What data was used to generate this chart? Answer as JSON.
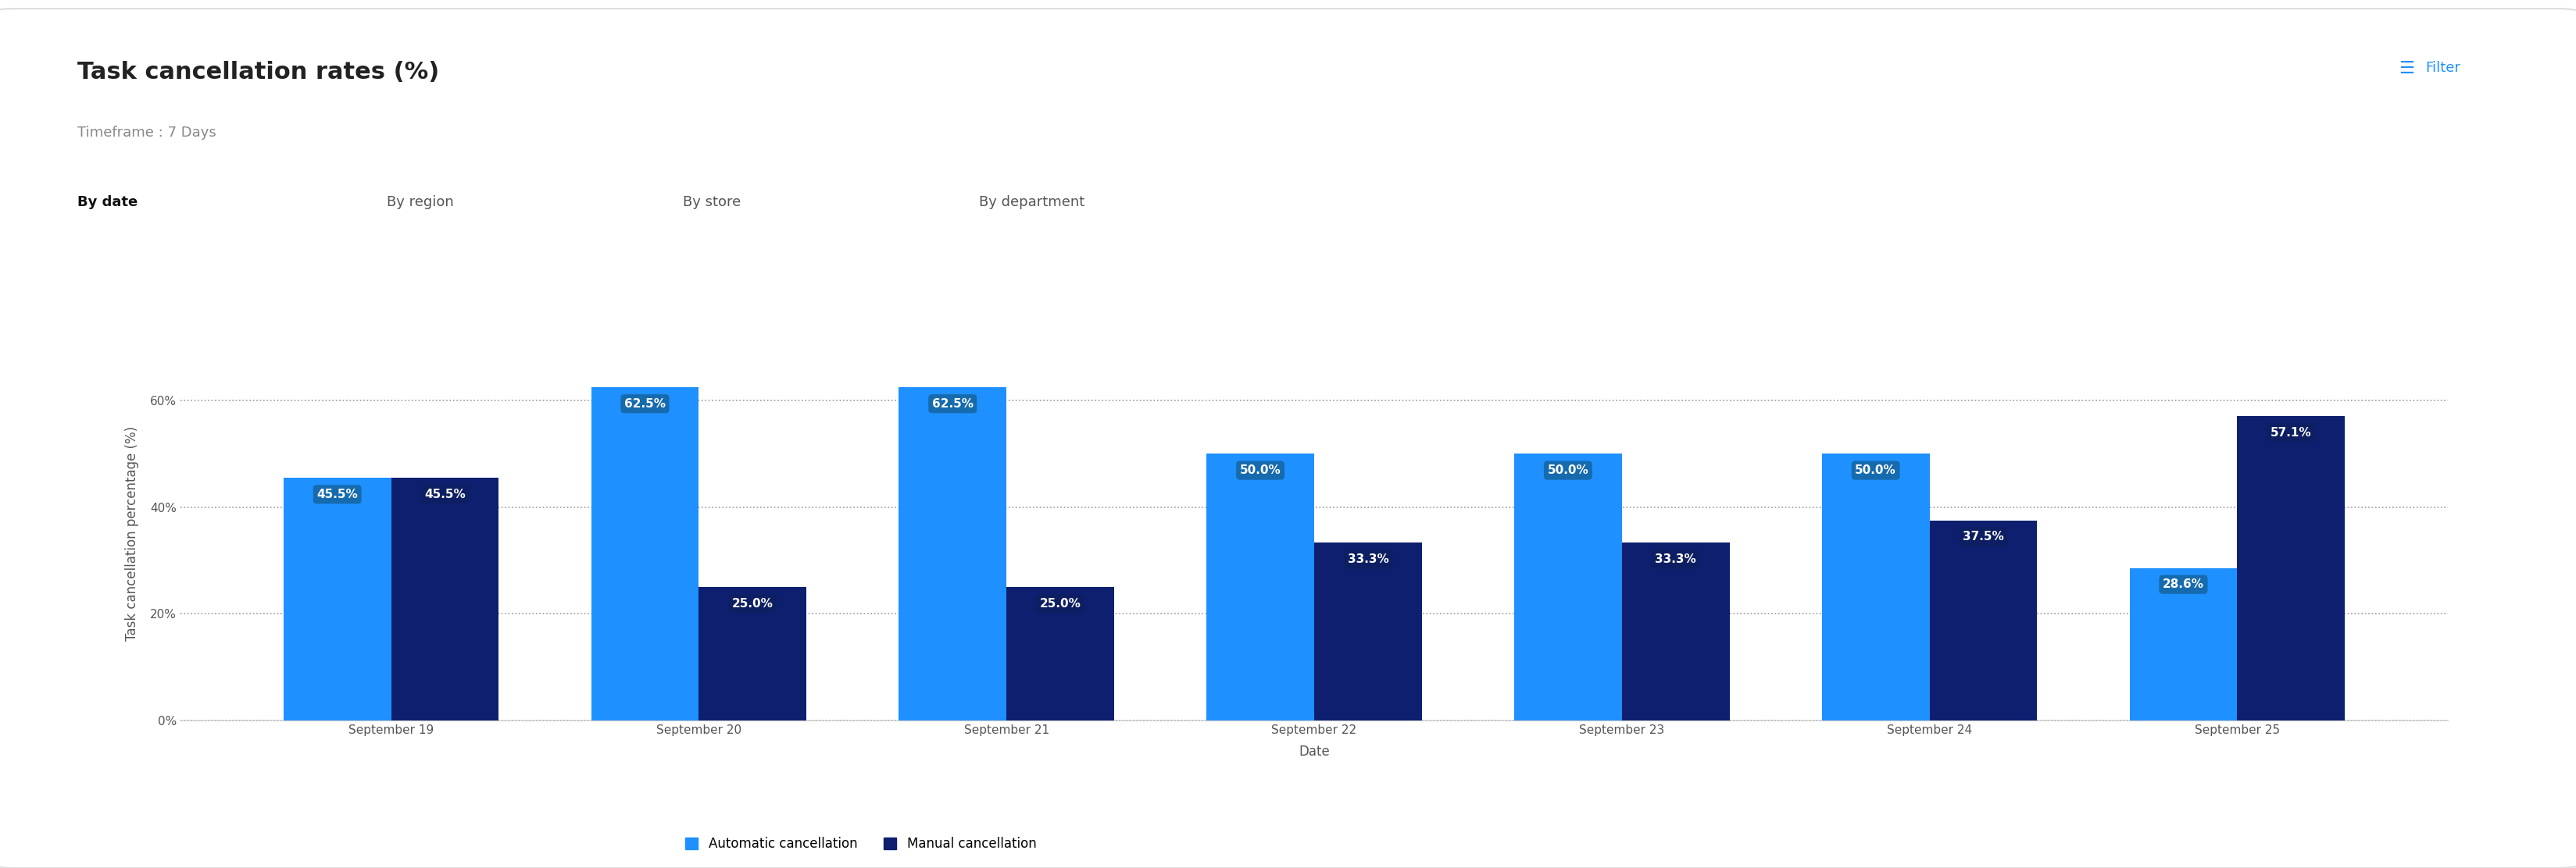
{
  "title": "Task cancellation rates (%)",
  "subtitle": "Timeframe : 7 Days",
  "tabs": [
    "By date",
    "By region",
    "By store",
    "By department"
  ],
  "active_tab": "By date",
  "xlabel": "Date",
  "ylabel": "Task cancellation percentage (%)",
  "categories": [
    "September 19",
    "September 20",
    "September 21",
    "September 22",
    "September 23",
    "September 24",
    "September 25"
  ],
  "automatic_values": [
    45.5,
    62.5,
    62.5,
    50.0,
    50.0,
    50.0,
    28.6
  ],
  "manual_values": [
    45.5,
    25.0,
    25.0,
    33.3,
    33.3,
    37.5,
    57.1
  ],
  "auto_color": "#1E90FF",
  "manual_color": "#0D1F6E",
  "label_bg_auto": "#1565a0",
  "label_bg_manual": "#0d2060",
  "ylim": [
    0,
    70
  ],
  "yticks": [
    0,
    20,
    40,
    60
  ],
  "ytick_labels": [
    "0%",
    "20%",
    "40%",
    "60%"
  ],
  "bar_width": 0.35,
  "background_color": "#ffffff",
  "filter_text": "Filter",
  "legend_auto": "Automatic cancellation",
  "legend_manual": "Manual cancellation",
  "title_fontsize": 22,
  "subtitle_fontsize": 13,
  "tab_fontsize": 13,
  "axis_label_fontsize": 12,
  "tick_fontsize": 11,
  "bar_label_fontsize": 11,
  "legend_fontsize": 12
}
